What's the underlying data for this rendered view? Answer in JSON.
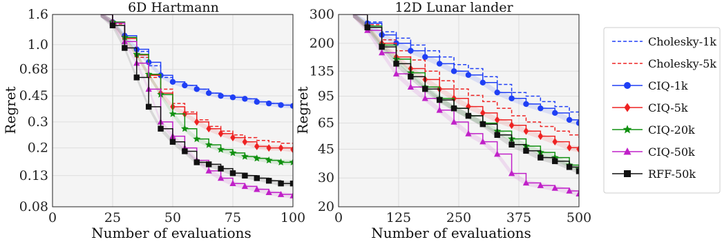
{
  "chart_data": [
    {
      "type": "line",
      "title": "6D Hartmann",
      "xlabel": "Number of evaluations",
      "ylabel": "Regret",
      "xlim": [
        0,
        100
      ],
      "ylim": [
        0.08,
        1.6
      ],
      "yscale": "log",
      "xticks": [
        0,
        25,
        50,
        75,
        100
      ],
      "yticks": [
        0.08,
        0.13,
        0.2,
        0.3,
        0.45,
        0.68,
        1.0,
        1.6
      ],
      "ytick_labels": [
        "0.08",
        "0.13",
        "0.2",
        "0.3",
        "0.45",
        "0.68",
        "1.0",
        "1.6"
      ],
      "grid": true,
      "series": [
        {
          "name": "Cholesky-1k",
          "color": "#1f3ff5",
          "style": "dashed",
          "marker": "none",
          "x": [
            20,
            25,
            30,
            35,
            40,
            45,
            50,
            55,
            60,
            65,
            70,
            75,
            80,
            85,
            90,
            95,
            100
          ],
          "y": [
            1.6,
            1.4,
            1.12,
            0.9,
            0.72,
            0.6,
            0.56,
            0.53,
            0.5,
            0.47,
            0.45,
            0.44,
            0.43,
            0.41,
            0.4,
            0.39,
            0.39
          ]
        },
        {
          "name": "Cholesky-5k",
          "color": "#ee2222",
          "style": "dashed",
          "marker": "none",
          "x": [
            20,
            25,
            30,
            35,
            40,
            45,
            50,
            55,
            60,
            65,
            70,
            75,
            80,
            85,
            90,
            95,
            100
          ],
          "y": [
            1.6,
            1.38,
            1.05,
            0.82,
            0.6,
            0.5,
            0.4,
            0.35,
            0.31,
            0.28,
            0.26,
            0.245,
            0.235,
            0.225,
            0.22,
            0.215,
            0.215
          ]
        },
        {
          "name": "CIQ-1k",
          "color": "#1f3ff5",
          "style": "solid",
          "marker": "circle",
          "x": [
            20,
            25,
            30,
            35,
            40,
            45,
            50,
            55,
            60,
            65,
            70,
            75,
            80,
            85,
            90,
            95,
            100
          ],
          "y": [
            1.6,
            1.42,
            1.15,
            0.93,
            0.76,
            0.62,
            0.56,
            0.53,
            0.5,
            0.47,
            0.45,
            0.44,
            0.43,
            0.41,
            0.4,
            0.39,
            0.385
          ]
        },
        {
          "name": "CIQ-5k",
          "color": "#ee2222",
          "style": "solid",
          "marker": "diamond",
          "x": [
            20,
            25,
            30,
            35,
            40,
            45,
            50,
            55,
            60,
            65,
            70,
            75,
            80,
            85,
            90,
            95,
            100
          ],
          "y": [
            1.6,
            1.42,
            1.1,
            0.85,
            0.62,
            0.47,
            0.38,
            0.34,
            0.3,
            0.27,
            0.25,
            0.235,
            0.22,
            0.205,
            0.2,
            0.2,
            0.195
          ]
        },
        {
          "name": "CIQ-20k",
          "color": "#109010",
          "style": "solid",
          "marker": "star",
          "x": [
            20,
            25,
            30,
            35,
            40,
            45,
            50,
            55,
            60,
            65,
            70,
            75,
            80,
            85,
            90,
            95,
            100
          ],
          "y": [
            1.6,
            1.42,
            1.12,
            0.86,
            0.63,
            0.46,
            0.34,
            0.27,
            0.23,
            0.21,
            0.195,
            0.185,
            0.175,
            0.17,
            0.165,
            0.16,
            0.16
          ]
        },
        {
          "name": "CIQ-50k",
          "color": "#c020c8",
          "style": "solid",
          "marker": "triangle",
          "x": [
            20,
            25,
            30,
            35,
            40,
            45,
            50,
            55,
            60,
            65,
            70,
            75,
            80,
            85,
            90,
            95,
            100
          ],
          "y": [
            1.6,
            1.4,
            1.05,
            0.75,
            0.5,
            0.3,
            0.24,
            0.2,
            0.165,
            0.14,
            0.125,
            0.115,
            0.11,
            0.105,
            0.1,
            0.097,
            0.095
          ]
        },
        {
          "name": "RFF-50k",
          "color": "#111111",
          "style": "solid",
          "marker": "square",
          "x": [
            20,
            25,
            30,
            35,
            40,
            45,
            50,
            55,
            60,
            65,
            70,
            75,
            80,
            85,
            90,
            95,
            100
          ],
          "y": [
            1.6,
            1.35,
            0.95,
            0.6,
            0.38,
            0.27,
            0.22,
            0.19,
            0.16,
            0.155,
            0.145,
            0.135,
            0.13,
            0.125,
            0.12,
            0.115,
            0.115
          ]
        }
      ]
    },
    {
      "type": "line",
      "title": "12D Lunar lander",
      "xlabel": "Number of evaluations",
      "ylabel": "Regret",
      "xlim": [
        0,
        500
      ],
      "ylim": [
        20,
        300
      ],
      "yscale": "log",
      "xticks": [
        0,
        125,
        250,
        375,
        500
      ],
      "yticks": [
        20,
        30,
        45,
        65,
        95,
        135,
        200,
        300
      ],
      "ytick_labels": [
        "20",
        "30",
        "45",
        "65",
        "95",
        "135",
        "200",
        "300"
      ],
      "grid": true,
      "series": [
        {
          "name": "Cholesky-1k",
          "color": "#1f3ff5",
          "style": "dashed",
          "marker": "none",
          "x": [
            30,
            60,
            90,
            120,
            150,
            180,
            210,
            240,
            270,
            300,
            330,
            360,
            390,
            420,
            450,
            480,
            500
          ],
          "y": [
            300,
            270,
            235,
            215,
            195,
            180,
            165,
            148,
            140,
            125,
            112,
            100,
            95,
            88,
            82,
            76,
            72
          ]
        },
        {
          "name": "Cholesky-5k",
          "color": "#ee2222",
          "style": "dashed",
          "marker": "none",
          "x": [
            30,
            60,
            90,
            120,
            150,
            180,
            210,
            240,
            270,
            300,
            330,
            360,
            390,
            420,
            450,
            480,
            500
          ],
          "y": [
            300,
            260,
            210,
            180,
            158,
            135,
            118,
            105,
            96,
            88,
            80,
            72,
            66,
            62,
            58,
            55,
            53
          ]
        },
        {
          "name": "CIQ-1k",
          "color": "#1f3ff5",
          "style": "solid",
          "marker": "circle",
          "x": [
            30,
            60,
            90,
            120,
            150,
            180,
            210,
            240,
            270,
            300,
            330,
            360,
            390,
            420,
            450,
            480,
            500
          ],
          "y": [
            300,
            265,
            225,
            200,
            180,
            165,
            150,
            135,
            128,
            115,
            100,
            92,
            85,
            80,
            75,
            68,
            65
          ]
        },
        {
          "name": "CIQ-5k",
          "color": "#ee2222",
          "style": "solid",
          "marker": "diamond",
          "x": [
            30,
            60,
            90,
            120,
            150,
            180,
            210,
            240,
            270,
            300,
            330,
            360,
            390,
            420,
            450,
            480,
            500
          ],
          "y": [
            300,
            255,
            200,
            165,
            140,
            120,
            105,
            92,
            82,
            75,
            68,
            63,
            58,
            54,
            50,
            46,
            45
          ]
        },
        {
          "name": "CIQ-20k",
          "color": "#109010",
          "style": "solid",
          "marker": "star",
          "x": [
            30,
            60,
            90,
            120,
            150,
            180,
            210,
            240,
            270,
            300,
            330,
            360,
            390,
            420,
            450,
            480,
            500
          ],
          "y": [
            300,
            255,
            195,
            160,
            132,
            108,
            92,
            80,
            72,
            65,
            58,
            52,
            47,
            43,
            40,
            36,
            34
          ]
        },
        {
          "name": "CIQ-50k",
          "color": "#c020c8",
          "style": "solid",
          "marker": "triangle",
          "x": [
            30,
            60,
            90,
            120,
            150,
            180,
            210,
            240,
            270,
            300,
            330,
            360,
            390,
            420,
            450,
            480,
            500
          ],
          "y": [
            300,
            240,
            175,
            130,
            108,
            92,
            78,
            66,
            56,
            50,
            42,
            32,
            28,
            27,
            26,
            25,
            24
          ]
        },
        {
          "name": "RFF-50k",
          "color": "#111111",
          "style": "solid",
          "marker": "square",
          "x": [
            30,
            60,
            90,
            120,
            150,
            180,
            210,
            240,
            270,
            300,
            330,
            360,
            390,
            420,
            450,
            480,
            500
          ],
          "y": [
            300,
            250,
            190,
            150,
            125,
            105,
            90,
            80,
            72,
            64,
            55,
            48,
            44,
            40,
            38,
            35,
            33
          ]
        }
      ]
    }
  ]
}
